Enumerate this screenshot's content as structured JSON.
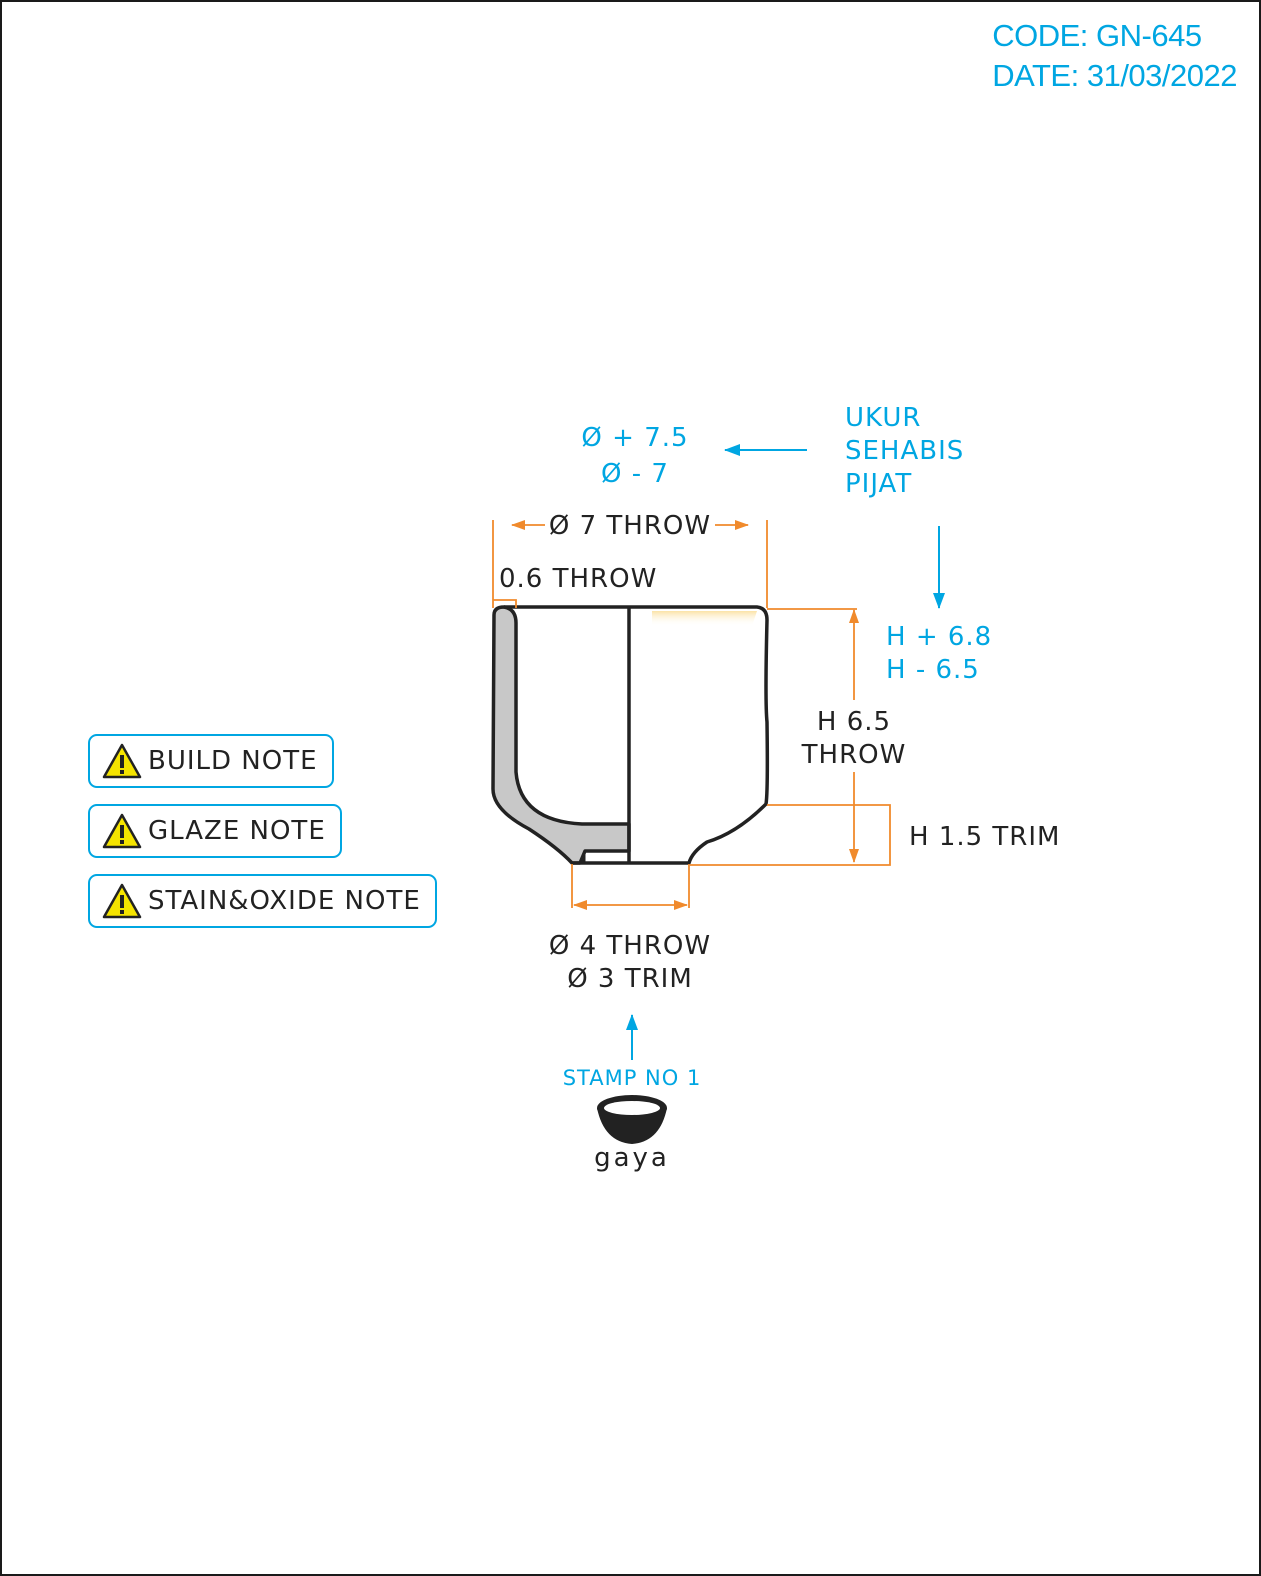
{
  "header": {
    "code": "CODE: GN-645",
    "date": "DATE: 31/03/2022"
  },
  "notes": [
    {
      "label": "BUILD NOTE",
      "icon": "warning-icon"
    },
    {
      "label": "GLAZE NOTE",
      "icon": "warning-icon"
    },
    {
      "label": "STAIN&OXIDE NOTE",
      "icon": "warning-icon"
    }
  ],
  "drawing": {
    "diameter_top_throw": "Ø 7 THROW",
    "wall_thickness": "0.6 THROW",
    "final_diameter_max": "Ø + 7.5",
    "final_diameter_min": "Ø - 7",
    "measure_note": [
      "UKUR",
      "SEHABIS",
      "PIJAT"
    ],
    "final_height_max": "H + 6.8",
    "final_height_min": "H - 6.5",
    "height_throw_value": "H 6.5",
    "height_throw_label": "THROW",
    "height_trim": "H 1.5 TRIM",
    "foot_throw": "Ø 4 THROW",
    "foot_trim": "Ø 3 TRIM",
    "stamp": "STAMP NO 1"
  },
  "logo": {
    "wordmark": "gaya"
  },
  "colors": {
    "accent": "#00a6e2",
    "dimension": "#f08a2c",
    "outline": "#222222",
    "section_fill": "#c8c8c8",
    "warning_fill": "#f5e400"
  }
}
